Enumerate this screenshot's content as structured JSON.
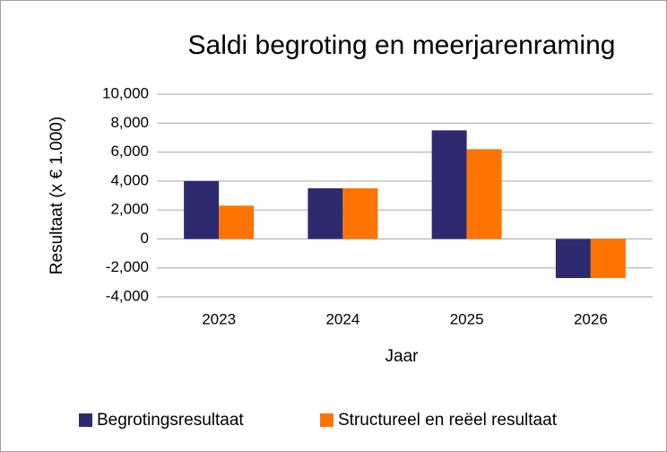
{
  "chart_data": {
    "type": "bar",
    "title": "Saldi begroting en meerjarenraming",
    "xlabel": "Jaar",
    "ylabel": "Resultaat (x € 1.000)",
    "categories": [
      "2023",
      "2024",
      "2025",
      "2026"
    ],
    "series": [
      {
        "name": "Begrotingsresultaat",
        "color": "#2e2a70",
        "values": [
          4000,
          3500,
          7500,
          -2700
        ]
      },
      {
        "name": "Structureel en reëel resultaat",
        "color": "#ff7300",
        "values": [
          2300,
          3500,
          6200,
          -2700
        ]
      }
    ],
    "ylim": [
      -4000,
      10000
    ],
    "yticks": [
      {
        "value": -4000,
        "label": "-4,000"
      },
      {
        "value": -2000,
        "label": "-2,000"
      },
      0,
      {
        "value": 2000,
        "label": "2,000"
      },
      {
        "value": 4000,
        "label": "4,000"
      },
      {
        "value": 6000,
        "label": "6,000"
      },
      {
        "value": 8000,
        "label": "8,000"
      },
      {
        "value": 10000,
        "label": "10,000"
      }
    ],
    "grid": true,
    "legend": "bottom"
  }
}
